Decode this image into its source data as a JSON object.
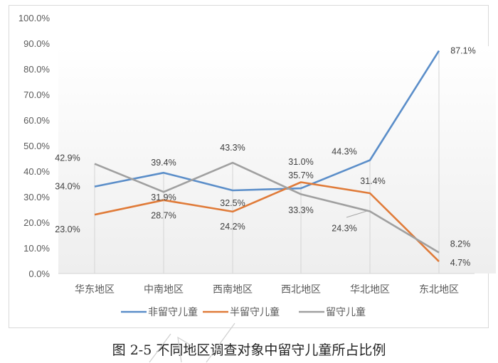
{
  "chart_data": {
    "type": "line",
    "title": "",
    "xlabel": "",
    "ylabel": "",
    "ylim": [
      0,
      100
    ],
    "yticks": [
      "0.0%",
      "10.0%",
      "20.0%",
      "30.0%",
      "40.0%",
      "50.0%",
      "60.0%",
      "70.0%",
      "80.0%",
      "90.0%",
      "100.0%"
    ],
    "categories": [
      "华东地区",
      "中南地区",
      "西南地区",
      "西北地区",
      "华北地区",
      "东北地区"
    ],
    "series": [
      {
        "name": "非留守儿童",
        "color": "#5b8ec9",
        "values": [
          34.0,
          39.4,
          32.5,
          33.3,
          44.3,
          87.1
        ],
        "labels": [
          "34.0%",
          "39.4%",
          "32.5%",
          "33.3%",
          "44.3%",
          "87.1%"
        ]
      },
      {
        "name": "半留守儿童",
        "color": "#e07b39",
        "values": [
          23.0,
          28.7,
          24.2,
          35.7,
          31.4,
          4.7
        ],
        "labels": [
          "23.0%",
          "28.7%",
          "24.2%",
          "35.7%",
          "31.4%",
          "4.7%"
        ]
      },
      {
        "name": "留守儿童",
        "color": "#a0a0a0",
        "values": [
          42.9,
          31.9,
          43.3,
          31.0,
          24.3,
          8.2
        ],
        "labels": [
          "42.9%",
          "31.9%",
          "43.3%",
          "31.0%",
          "24.3%",
          "8.2%"
        ]
      }
    ],
    "grid": "vertical drop lines at categories",
    "legend_position": "bottom"
  },
  "caption": "图 2-5   不同地区调查对象中留守儿童所占比例"
}
